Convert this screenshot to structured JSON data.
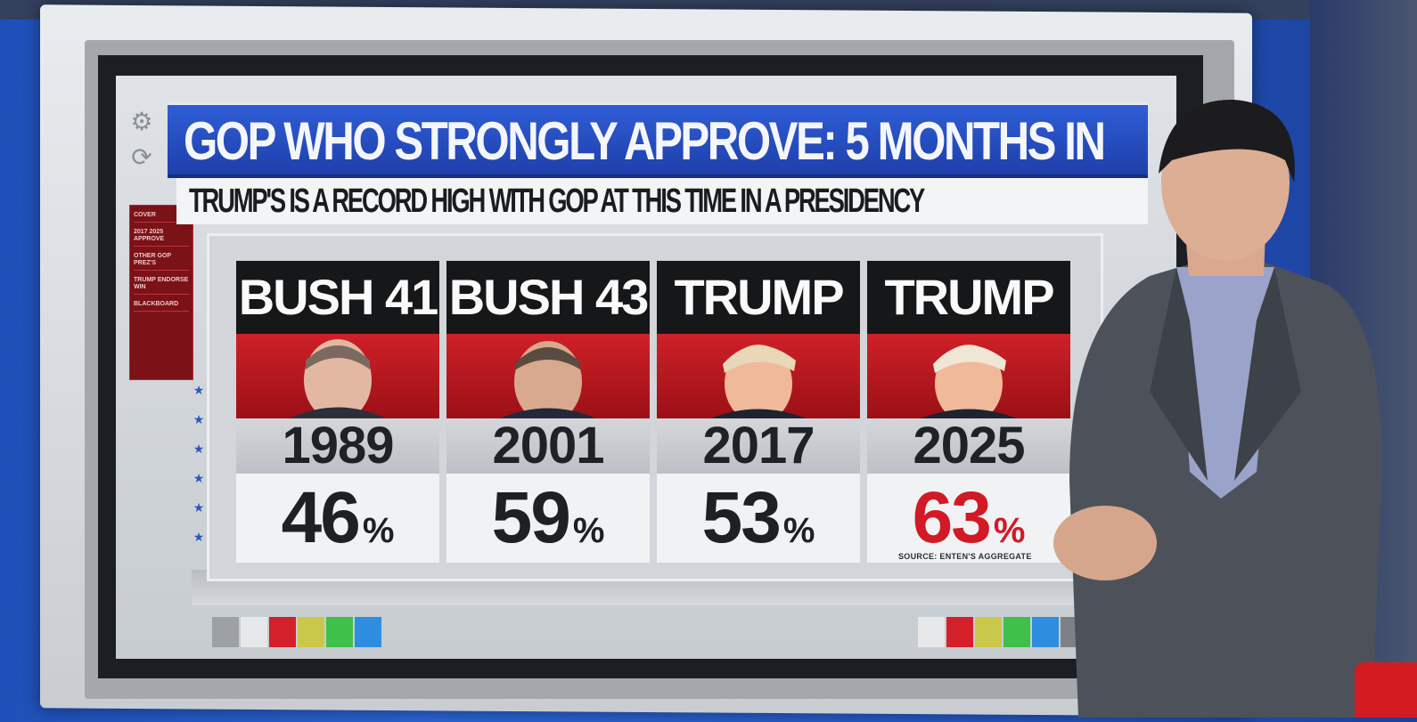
{
  "headline": "GOP WHO STRONGLY APPROVE: 5 MONTHS IN",
  "subheadline": "TRUMP'S IS A RECORD HIGH WITH GOP AT THIS TIME IN A PRESIDENCY",
  "nav_items": [
    "COVER",
    "2017 2025 APPROVE",
    "OTHER GOP PREZ'S",
    "TRUMP ENDORSE WIN",
    "BLACKBOARD"
  ],
  "columns": [
    {
      "president": "BUSH 41",
      "year": "1989",
      "value": "46",
      "unit": "%",
      "highlight": false
    },
    {
      "president": "BUSH 43",
      "year": "2001",
      "value": "59",
      "unit": "%",
      "highlight": false
    },
    {
      "president": "TRUMP",
      "year": "2017",
      "value": "53",
      "unit": "%",
      "highlight": false
    },
    {
      "president": "TRUMP",
      "year": "2025",
      "value": "63",
      "unit": "%",
      "highlight": true
    }
  ],
  "source": "SOURCE: ENTEN'S AGGREGATE",
  "colors": {
    "headline_blue": "#1d3ea8",
    "portrait_red": "#c41d25",
    "highlight_red": "#d11a26",
    "label_black": "#151719"
  },
  "swatches_left": [
    "#9da1a6",
    "#e6e8ea",
    "#d3202a",
    "#c9c84a",
    "#3fc04a",
    "#2f8de0"
  ],
  "swatches_right": [
    "#e6e8ea",
    "#d3202a",
    "#c9c84a",
    "#3fc04a",
    "#2f8de0",
    "#7d8087"
  ]
}
